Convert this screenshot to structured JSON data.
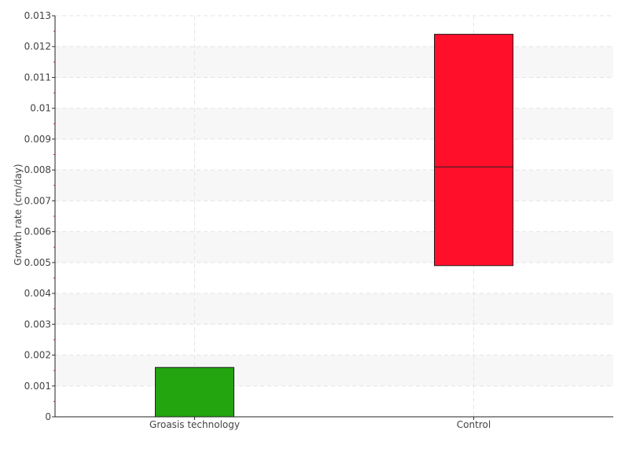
{
  "chart_data": {
    "type": "box",
    "title": "",
    "xlabel": "",
    "ylabel": "Growth rate (cm/day)",
    "ylim": [
      0,
      0.013
    ],
    "yticks": [
      "0",
      "0.001",
      "0.002",
      "0.003",
      "0.004",
      "0.005",
      "0.006",
      "0.007",
      "0.008",
      "0.009",
      "0.01",
      "0.011",
      "0.012",
      "0.013"
    ],
    "grid": true,
    "categories": [
      "Groasis technology",
      "Control"
    ],
    "boxes": [
      {
        "category": "Groasis technology",
        "low": 0,
        "median": null,
        "high": 0.0016,
        "color": "#22a50f"
      },
      {
        "category": "Control",
        "low": 0.0049,
        "median": 0.0081,
        "high": 0.0124,
        "color": "#ff0f2a"
      }
    ]
  }
}
